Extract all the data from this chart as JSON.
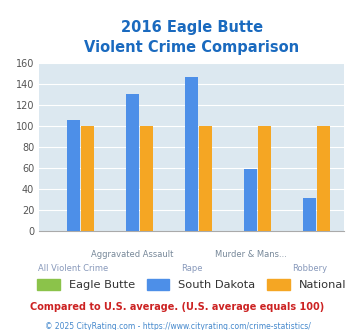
{
  "title_line1": "2016 Eagle Butte",
  "title_line2": "Violent Crime Comparison",
  "cat_labels_top": [
    "",
    "Aggravated Assault",
    "",
    "Murder & Mans...",
    ""
  ],
  "cat_labels_bottom": [
    "All Violent Crime",
    "",
    "Rape",
    "",
    "Robbery"
  ],
  "eagle_butte": [
    0,
    0,
    0,
    0,
    0
  ],
  "south_dakota": [
    106,
    130,
    146,
    59,
    31
  ],
  "national": [
    100,
    100,
    100,
    100,
    100
  ],
  "eagle_butte_color": "#8bc34a",
  "south_dakota_color": "#4d8fe8",
  "national_color": "#f5a623",
  "bg_color": "#dce8f0",
  "ylim": [
    0,
    160
  ],
  "yticks": [
    0,
    20,
    40,
    60,
    80,
    100,
    120,
    140,
    160
  ],
  "title_color": "#1a6abf",
  "footnote1": "Compared to U.S. average. (U.S. average equals 100)",
  "footnote2": "© 2025 CityRating.com - https://www.cityrating.com/crime-statistics/",
  "footnote1_color": "#cc2222",
  "footnote2_color": "#4488cc"
}
